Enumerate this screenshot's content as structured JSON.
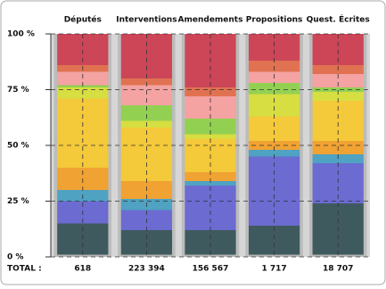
{
  "chart_data": {
    "type": "stacked_bar_100",
    "categories": [
      "Députés",
      "Interventions",
      "Amendements",
      "Propositions",
      "Quest. Écrites"
    ],
    "series": [
      {
        "color": "#b4b4b4",
        "values": [
          1,
          1,
          1,
          1,
          1
        ]
      },
      {
        "color": "#3f5a5e",
        "values": [
          14,
          11,
          11,
          13,
          23
        ]
      },
      {
        "color": "#6b6bd2",
        "values": [
          10,
          9,
          20,
          31,
          18
        ]
      },
      {
        "color": "#4fa2c2",
        "values": [
          5,
          5,
          2,
          3,
          4
        ]
      },
      {
        "color": "#f0a232",
        "values": [
          10,
          8,
          4,
          4,
          6
        ]
      },
      {
        "color": "#f4c93a",
        "values": [
          31,
          24,
          15,
          11,
          18
        ]
      },
      {
        "color": "#d6de42",
        "values": [
          5,
          3,
          2,
          10,
          4
        ]
      },
      {
        "color": "#92d052",
        "values": [
          1,
          7,
          7,
          5,
          2
        ]
      },
      {
        "color": "#f4a2a2",
        "values": [
          6,
          9,
          10,
          5,
          6
        ]
      },
      {
        "color": "#e07252",
        "values": [
          3,
          3,
          4,
          5,
          4
        ]
      },
      {
        "color": "#cc4658",
        "values": [
          14,
          20,
          24,
          12,
          14
        ]
      }
    ],
    "ylim": [
      0,
      100
    ],
    "yticks": [
      {
        "value": 0,
        "label": "0 %"
      },
      {
        "value": 25,
        "label": "25 %"
      },
      {
        "value": 50,
        "label": "50 %"
      },
      {
        "value": 75,
        "label": "75 %"
      },
      {
        "value": 100,
        "label": "100 %"
      }
    ],
    "grid": true,
    "totals_label": "TOTAL :",
    "totals": [
      "618",
      "223 394",
      "156 567",
      "1 717",
      "18 707"
    ]
  }
}
